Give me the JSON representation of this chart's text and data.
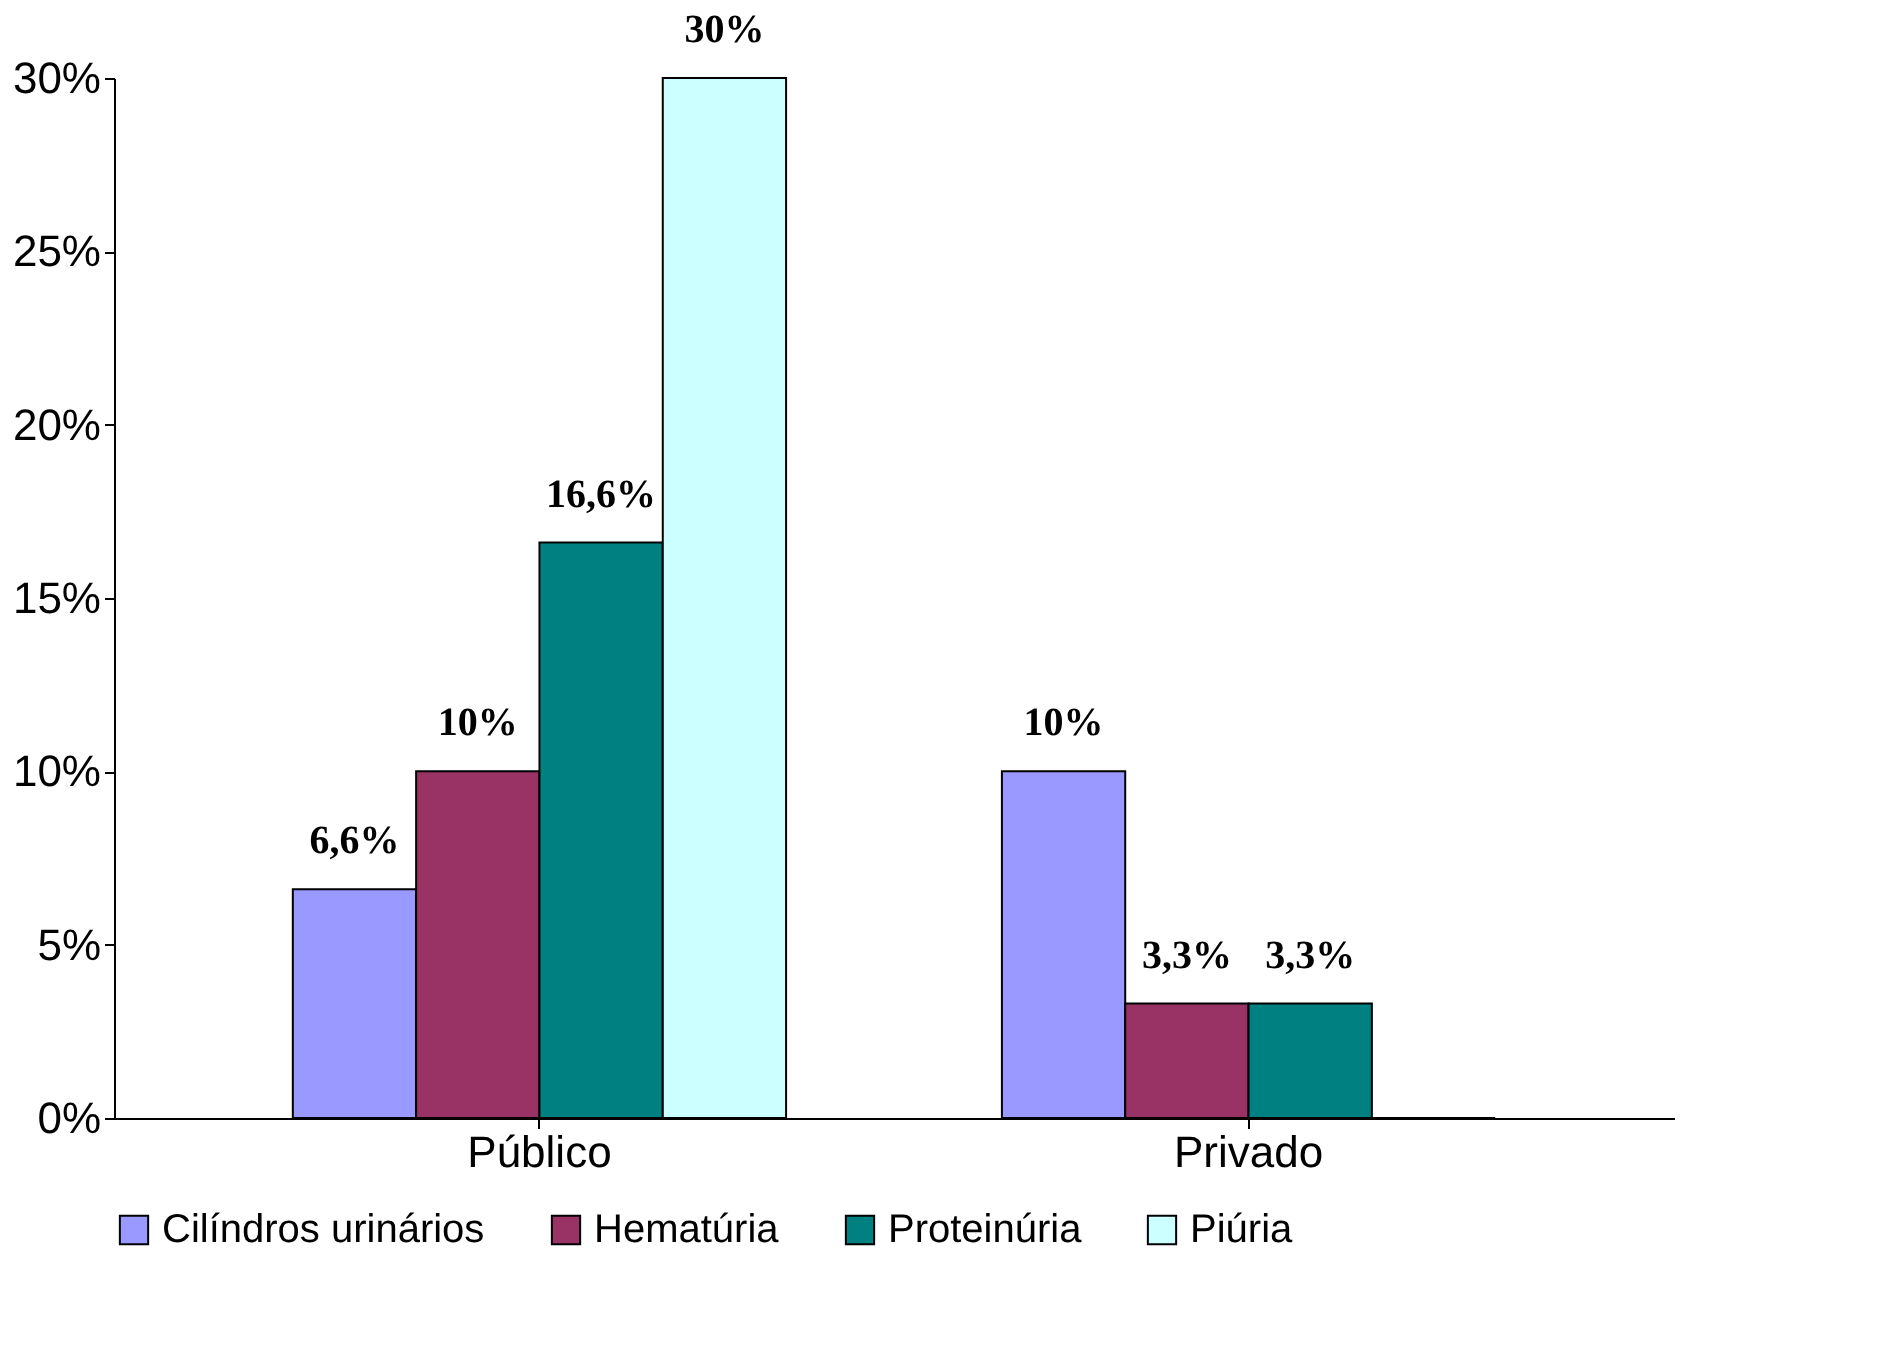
{
  "chart_data": {
    "type": "bar",
    "categories": [
      "Público",
      "Privado"
    ],
    "series": [
      {
        "name": "Cilíndros urinários",
        "color": "#9999ff",
        "values": [
          6.6,
          10
        ],
        "value_labels": [
          "6,6%",
          "10%"
        ]
      },
      {
        "name": "Hematúria",
        "color": "#993366",
        "values": [
          10,
          3.3
        ],
        "value_labels": [
          "10%",
          "3,3%"
        ]
      },
      {
        "name": "Proteinúria",
        "color": "#008080",
        "values": [
          16.6,
          3.3
        ],
        "value_labels": [
          "16,6%",
          "3,3%"
        ]
      },
      {
        "name": "Piúria",
        "color": "#ccffff",
        "values": [
          30,
          0
        ],
        "value_labels": [
          "30%",
          null
        ]
      }
    ],
    "ylim": [
      0,
      30
    ],
    "yticks": [
      {
        "value": 0,
        "label": "0%"
      },
      {
        "value": 5,
        "label": "5%"
      },
      {
        "value": 10,
        "label": "10%"
      },
      {
        "value": 15,
        "label": "15%"
      },
      {
        "value": 20,
        "label": "20%"
      },
      {
        "value": 25,
        "label": "25%"
      },
      {
        "value": 30,
        "label": "30%"
      }
    ],
    "grid": false,
    "legend": "bottom"
  }
}
